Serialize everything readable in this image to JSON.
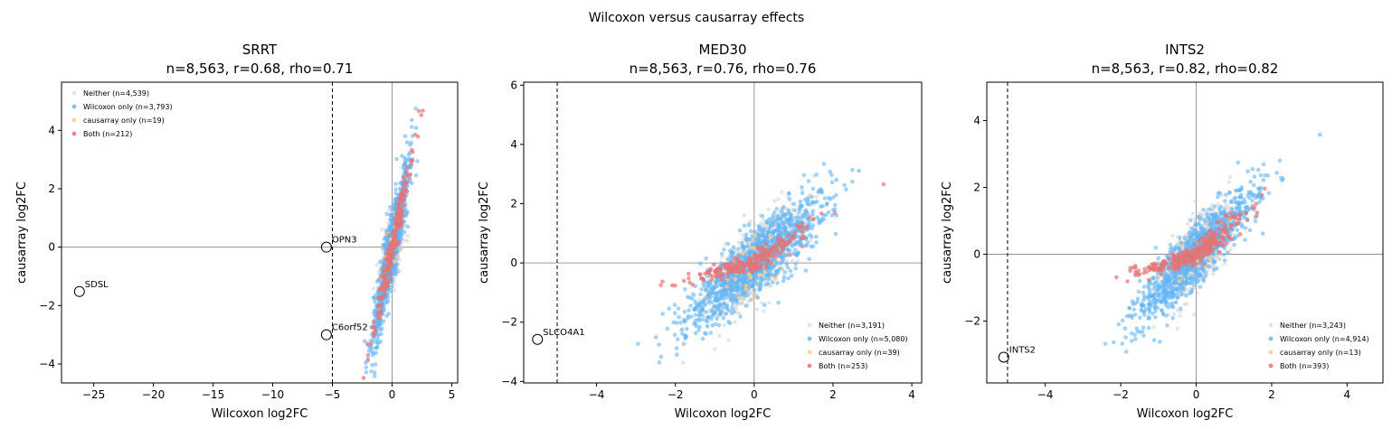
{
  "figure": {
    "suptitle": "Wilcoxon versus causarray effects"
  },
  "colors": {
    "neither": "#c8c8c8",
    "wilcoxon_only": "#64b5f6",
    "causarray_only": "#ffcc80",
    "both": "#e57373"
  },
  "chart_data": [
    {
      "type": "scatter",
      "title": "SRRT",
      "subtitle": "n=8,563, r=0.68, rho=0.71",
      "xlabel": "Wilcoxon log2FC",
      "ylabel": "causarray log2FC",
      "xlim": [
        -27.7,
        5.5
      ],
      "ylim": [
        -4.65,
        5.65
      ],
      "xticks": [
        -25,
        -20,
        -15,
        -10,
        -5,
        0,
        5
      ],
      "yticks": [
        -4,
        -2,
        0,
        2,
        4
      ],
      "threshold_x": -5,
      "legend_position": "upper left",
      "legend": [
        {
          "key": "neither",
          "label": "Neither (n=4,539)"
        },
        {
          "key": "wilcoxon_only",
          "label": "Wilcoxon only (n=3,793)"
        },
        {
          "key": "causarray_only",
          "label": "causarray only (n=19)"
        },
        {
          "key": "both",
          "label": "Both (n=212)"
        }
      ],
      "highlighted_genes": [
        {
          "gene": "SDSL",
          "x": -26.2,
          "y": -1.52
        },
        {
          "gene": "OPN3",
          "x": -5.5,
          "y": 0.0
        },
        {
          "gene": "C6orf52",
          "x": -5.5,
          "y": -3.0
        }
      ]
    },
    {
      "type": "scatter",
      "title": "MED30",
      "subtitle": "n=8,563, r=0.76, rho=0.76",
      "xlabel": "Wilcoxon log2FC",
      "ylabel": "causarray log2FC",
      "xlim": [
        -5.85,
        4.25
      ],
      "ylim": [
        -4.05,
        6.1
      ],
      "xticks": [
        -4,
        -2,
        0,
        2,
        4
      ],
      "yticks": [
        -4,
        -2,
        0,
        2,
        4,
        6
      ],
      "threshold_x": -5,
      "legend_position": "lower right",
      "legend": [
        {
          "key": "neither",
          "label": "Neither (n=3,191)"
        },
        {
          "key": "wilcoxon_only",
          "label": "Wilcoxon only (n=5,080)"
        },
        {
          "key": "causarray_only",
          "label": "causarray only (n=39)"
        },
        {
          "key": "both",
          "label": "Both (n=253)"
        }
      ],
      "highlighted_genes": [
        {
          "gene": "SLCO4A1",
          "x": -5.5,
          "y": -2.58
        }
      ]
    },
    {
      "type": "scatter",
      "title": "INTS2",
      "subtitle": "n=8,563, r=0.82, rho=0.82",
      "xlabel": "Wilcoxon log2FC",
      "ylabel": "causarray log2FC",
      "xlim": [
        -5.55,
        4.95
      ],
      "ylim": [
        -3.85,
        5.15
      ],
      "xticks": [
        -4,
        -2,
        0,
        2,
        4
      ],
      "yticks": [
        -2,
        0,
        2,
        4
      ],
      "threshold_x": -5,
      "legend_position": "lower right",
      "legend": [
        {
          "key": "neither",
          "label": "Neither (n=3,243)"
        },
        {
          "key": "wilcoxon_only",
          "label": "Wilcoxon only (n=4,914)"
        },
        {
          "key": "causarray_only",
          "label": "causarray only (n=13)"
        },
        {
          "key": "both",
          "label": "Both (n=393)"
        }
      ],
      "highlighted_genes": [
        {
          "gene": "INTS2",
          "x": -5.1,
          "y": -3.08
        }
      ]
    }
  ]
}
